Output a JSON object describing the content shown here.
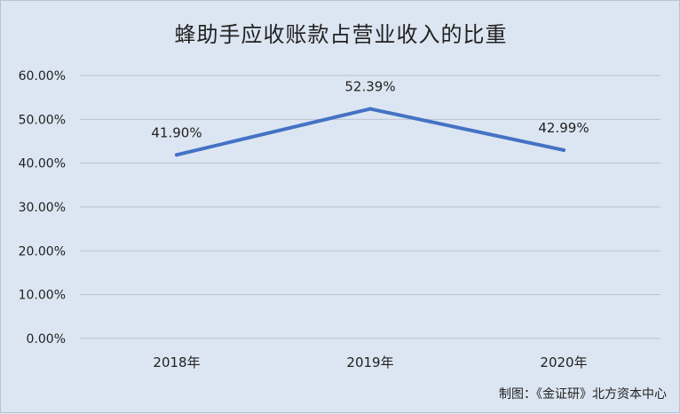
{
  "chart_data": {
    "type": "line",
    "title": "蜂助手应收账款占营业收入的比重",
    "categories": [
      "2018年",
      "2019年",
      "2020年"
    ],
    "series": [
      {
        "values": [
          41.9,
          52.39,
          42.99
        ],
        "labels": [
          "41.90%",
          "52.39%",
          "42.99%"
        ]
      }
    ],
    "ylim": [
      0,
      60
    ],
    "yticks": [
      "0.00%",
      "10.00%",
      "20.00%",
      "30.00%",
      "40.00%",
      "50.00%",
      "60.00%"
    ],
    "ytick_values": [
      0,
      10,
      20,
      30,
      40,
      50,
      60
    ],
    "grid": true,
    "line_color": "#4472c4",
    "grid_color": "#b9c4cf"
  },
  "footer": {
    "source": "制图：《金证研》北方资本中心"
  }
}
